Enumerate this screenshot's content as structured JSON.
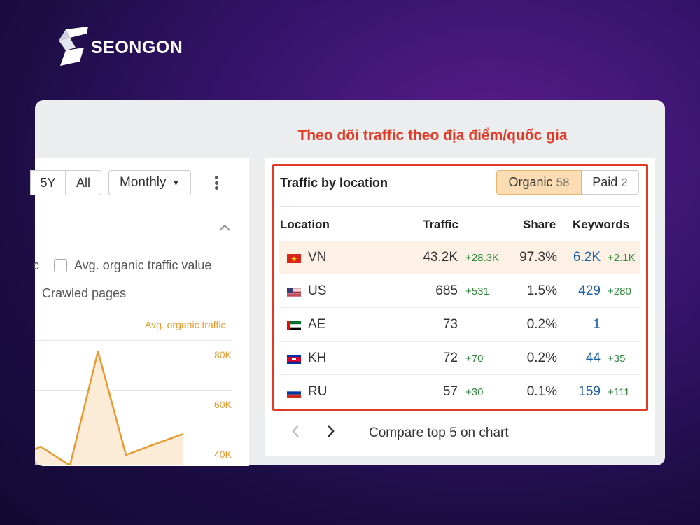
{
  "brand": {
    "name": "SEONGON"
  },
  "heading": "Theo dõi traffic theo địa điểm/quốc gia",
  "left": {
    "range_buttons": [
      "5Y",
      "All"
    ],
    "period_select": "Monthly",
    "checkbox_partial_label": "c",
    "checkbox_label": "Avg. organic traffic value",
    "crawled_label": "Crawled pages",
    "series_label": "Avg. organic traffic",
    "yticks": [
      "80K",
      "60K",
      "40K"
    ]
  },
  "panel": {
    "title": "Traffic by location",
    "toggles": [
      {
        "label": "Organic",
        "count": "58",
        "active": true
      },
      {
        "label": "Paid",
        "count": "2",
        "active": false
      }
    ],
    "columns": [
      "Location",
      "Traffic",
      "Share",
      "Keywords"
    ],
    "rows": [
      {
        "code": "VN",
        "traffic": "43.2K",
        "traffic_delta": "+28.3K",
        "share": "97.3%",
        "keywords": "6.2K",
        "keywords_delta": "+2.1K"
      },
      {
        "code": "US",
        "traffic": "685",
        "traffic_delta": "+531",
        "share": "1.5%",
        "keywords": "429",
        "keywords_delta": "+280"
      },
      {
        "code": "AE",
        "traffic": "73",
        "traffic_delta": "",
        "share": "0.2%",
        "keywords": "1",
        "keywords_delta": ""
      },
      {
        "code": "KH",
        "traffic": "72",
        "traffic_delta": "+70",
        "share": "0.2%",
        "keywords": "44",
        "keywords_delta": "+35"
      },
      {
        "code": "RU",
        "traffic": "57",
        "traffic_delta": "+30",
        "share": "0.1%",
        "keywords": "159",
        "keywords_delta": "+111"
      }
    ],
    "compare_label": "Compare top 5 on chart"
  },
  "colors": {
    "accent_red": "#e03a26",
    "orange": "#e89a2f",
    "positive": "#2f8a3c",
    "link_blue": "#1d5fa3"
  }
}
